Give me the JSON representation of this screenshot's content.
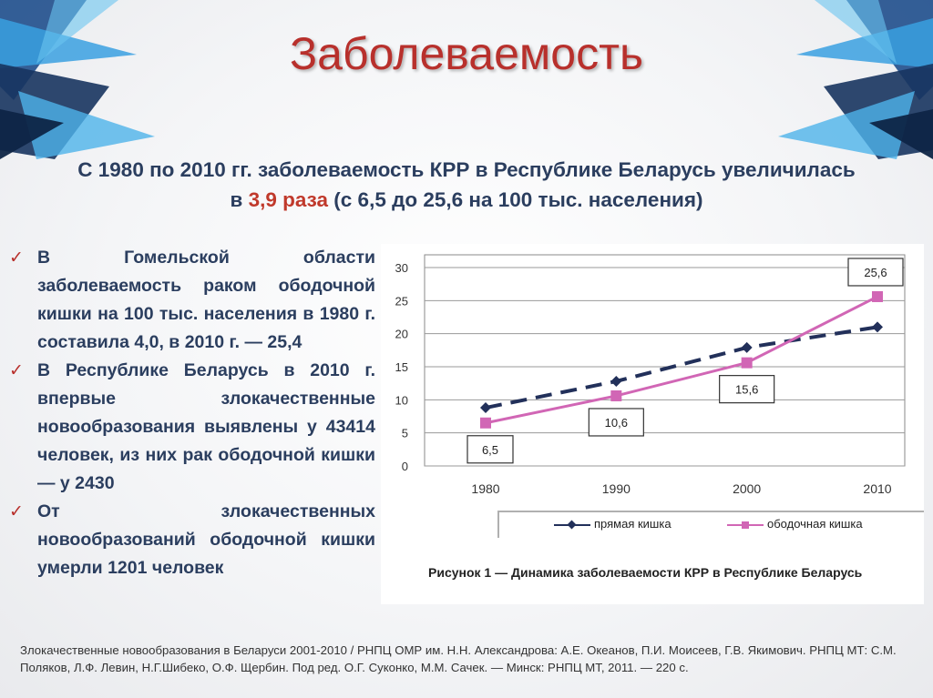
{
  "slide": {
    "title": "Заболеваемость",
    "subtitle_part1": "С 1980 по 2010 гг. заболеваемость КРР в Республике Беларусь увеличилась в ",
    "subtitle_highlight": "3,9 раза",
    "subtitle_part2": " (с 6,5 до 25,6 на 100 тыс. населения)",
    "bullets": [
      "В Гомельской области заболеваемость раком ободочной кишки на 100 тыс. населения в 1980 г. составила 4,0, в 2010 г. — 25,4",
      "В Республике Беларусь в 2010 г. впервые злокачественные новообразования выявлены у 43414 человек, из них рак ободочной кишки — у 2430",
      "От злокачественных новообразований ободочной кишки умерли 1201 человек"
    ],
    "bullet_icon": "checkmark-icon",
    "source": "Злокачественные новообразования в Беларуси 2001-2010 / РНПЦ ОМР им. Н.Н. Александрова: А.Е. Океанов, П.И. Моисеев, Г.В. Якимович. РНПЦ МТ: С.М. Поляков, Л.Ф. Левин, Н.Г.Шибеко, О.Ф. Щербин. Под ред. О.Г. Суконко, М.М. Сачек. — Минск: РНПЦ МТ, 2011. — 220 с.",
    "colors": {
      "title": "#b8302c",
      "text": "#2b3e5f",
      "highlight": "#c0392b",
      "series_dashed": "#22305a",
      "series_solid": "#d166b5"
    }
  },
  "chart_data": {
    "type": "line",
    "title": "Рисунок 1 — Динамика заболеваемости КРР в Республике Беларусь",
    "xlabel": "",
    "ylabel": "",
    "categories": [
      "1980",
      "1990",
      "2000",
      "2010"
    ],
    "ylim": [
      0,
      30
    ],
    "yticks": [
      "0",
      "5",
      "10",
      "15",
      "20",
      "25",
      "30"
    ],
    "grid": true,
    "legend_position": "bottom",
    "series": [
      {
        "name": "прямая кишка",
        "values": [
          8.8,
          12.8,
          17.9,
          21.0
        ],
        "style": "dashed",
        "marker": "diamond",
        "color": "#22305a"
      },
      {
        "name": "ободочная кишка",
        "values": [
          6.5,
          10.6,
          15.6,
          25.6
        ],
        "style": "solid",
        "marker": "square",
        "color": "#d166b5",
        "data_labels": [
          "6,5",
          "10,6",
          "15,6",
          "25,6"
        ]
      }
    ]
  }
}
